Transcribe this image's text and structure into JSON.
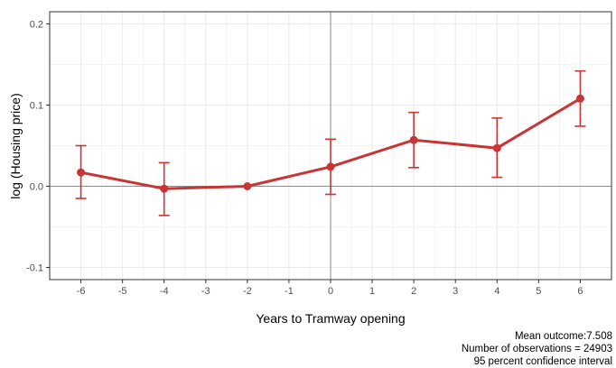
{
  "chart_data": {
    "type": "line",
    "x": [
      -6,
      -4,
      -2,
      0,
      2,
      4,
      6
    ],
    "series": [
      {
        "values": [
          0.017,
          -0.003,
          0.0,
          0.024,
          0.057,
          0.047,
          0.108
        ],
        "ci_lower": [
          -0.015,
          -0.036,
          null,
          -0.01,
          0.023,
          0.011,
          0.074
        ],
        "ci_upper": [
          0.05,
          0.029,
          null,
          0.058,
          0.091,
          0.084,
          0.142
        ]
      }
    ],
    "xlabel": "Years to Tramway opening",
    "ylabel": "log (Housing price)",
    "xlim": [
      -6.75,
      6.75
    ],
    "ylim": [
      -0.115,
      0.215
    ],
    "x_ticks": [
      -6,
      -5,
      -4,
      -3,
      -2,
      -1,
      0,
      1,
      2,
      3,
      4,
      5,
      6
    ],
    "x_tick_labels": [
      "-6",
      "-5",
      "-4",
      "-3",
      "-2",
      "-1",
      "0",
      "1",
      "2",
      "3",
      "4",
      "5",
      "6"
    ],
    "y_ticks": [
      -0.1,
      0.0,
      0.1,
      0.2
    ],
    "y_tick_labels": [
      "-0.1",
      "0.0",
      "0.1",
      "0.2"
    ],
    "reference_lines": {
      "x": 0,
      "y": 0
    },
    "grid": true,
    "colors": {
      "series": "#c93535",
      "reference": "#8c8c8c",
      "grid": "#ebebeb",
      "panel_border": "#333333"
    }
  },
  "caption": {
    "line1": "Mean outcome:7.508",
    "line2": "Number of observations = 24903",
    "line3": "95 percent confidence interval"
  }
}
